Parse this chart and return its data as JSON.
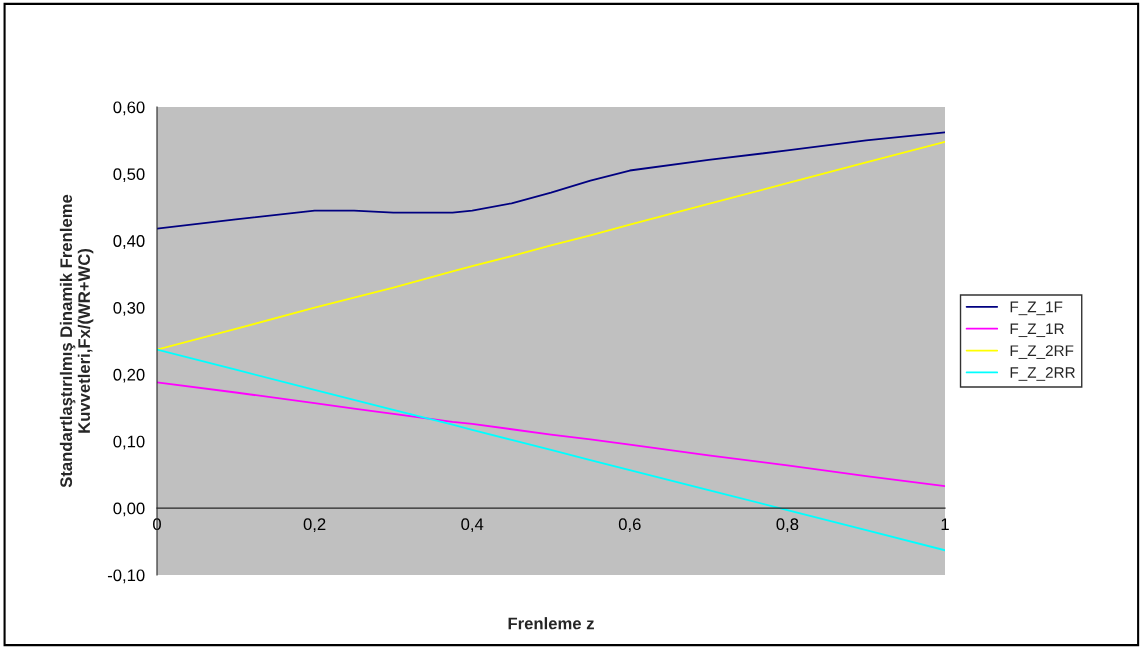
{
  "chart_data": {
    "type": "line",
    "xlabel": "Frenleme z",
    "ylabel": "Standartlaştırılmış Dinamik Frenleme\nKuvvetleri,Fx/(WR+WC)",
    "x": [
      0,
      0.1,
      0.2,
      0.25,
      0.3,
      0.375,
      0.4,
      0.45,
      0.5,
      0.55,
      0.6,
      0.7,
      0.8,
      0.9,
      1
    ],
    "series": [
      {
        "name": "F_Z_1F",
        "color": "#000080",
        "values": [
          0.418,
          0.432,
          0.445,
          0.445,
          0.442,
          0.442,
          0.445,
          0.456,
          0.472,
          0.49,
          0.505,
          0.521,
          0.535,
          0.55,
          0.562
        ]
      },
      {
        "name": "F_Z_1R",
        "color": "#ff00ff",
        "values": [
          0.188,
          0.173,
          0.157,
          0.149,
          0.141,
          0.129,
          0.126,
          0.118,
          0.11,
          0.103,
          0.095,
          0.079,
          0.064,
          0.048,
          0.033
        ]
      },
      {
        "name": "F_Z_2RF",
        "color": "#ffff00",
        "values": [
          0.237,
          0.268,
          0.3,
          0.315,
          0.33,
          0.354,
          0.362,
          0.377,
          0.393,
          0.408,
          0.424,
          0.455,
          0.486,
          0.517,
          0.548
        ]
      },
      {
        "name": "F_Z_2RR",
        "color": "#00ffff",
        "values": [
          0.237,
          0.207,
          0.177,
          0.162,
          0.147,
          0.125,
          0.117,
          0.102,
          0.087,
          0.072,
          0.057,
          0.027,
          -0.003,
          -0.033,
          -0.063
        ]
      }
    ],
    "xlim": [
      0,
      1
    ],
    "xticks": [
      0,
      {
        "value": 0.2,
        "label": "0,2"
      },
      {
        "value": 0.4,
        "label": "0,4"
      },
      {
        "value": 0.6,
        "label": "0,6"
      },
      {
        "value": 0.8,
        "label": "0,8"
      },
      1
    ],
    "ylim": [
      -0.1,
      0.6
    ],
    "yticks": [
      {
        "value": -0.1,
        "label": "-0,10"
      },
      {
        "value": 0,
        "label": "0,00"
      },
      {
        "value": 0.1,
        "label": "0,10"
      },
      {
        "value": 0.2,
        "label": "0,20"
      },
      {
        "value": 0.3,
        "label": "0,30"
      },
      {
        "value": 0.4,
        "label": "0,40"
      },
      {
        "value": 0.5,
        "label": "0,50"
      },
      {
        "value": 0.6,
        "label": "0,60"
      }
    ],
    "grid": false,
    "legend": "right",
    "marker": "none",
    "line_style": "solid"
  }
}
